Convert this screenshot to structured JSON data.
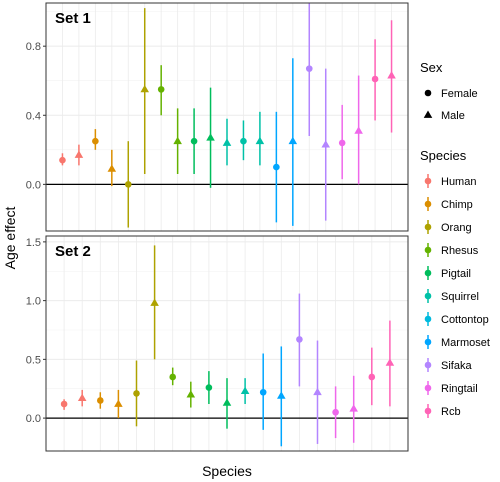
{
  "chart_data": {
    "type": "scatter",
    "xlabel": "Species",
    "ylabel": "Age effect",
    "legend_position": "right",
    "grid": true,
    "legends": {
      "sex": {
        "title": "Sex",
        "items": [
          {
            "label": "Female",
            "shape": "circle"
          },
          {
            "label": "Male",
            "shape": "triangle"
          }
        ]
      },
      "species": {
        "title": "Species",
        "items": [
          {
            "label": "Human",
            "color": "#F8766D"
          },
          {
            "label": "Chimp",
            "color": "#DB8E00"
          },
          {
            "label": "Orang",
            "color": "#AEA200"
          },
          {
            "label": "Rhesus",
            "color": "#64B200"
          },
          {
            "label": "Pigtail",
            "color": "#00BD5C"
          },
          {
            "label": "Squirrel",
            "color": "#00C1A7"
          },
          {
            "label": "Cottontop",
            "color": "#00BADE"
          },
          {
            "label": "Marmoset",
            "color": "#00A6FF"
          },
          {
            "label": "Sifaka",
            "color": "#B385FF"
          },
          {
            "label": "Ringtail",
            "color": "#EF67EB"
          },
          {
            "label": "Rcb",
            "color": "#FF63B6"
          }
        ]
      }
    },
    "panels": [
      {
        "label": "Set 1",
        "ylim": [
          -0.27,
          1.05
        ],
        "yticks": [
          0.0,
          0.4,
          0.8
        ],
        "ytick_labels": [
          "0.0",
          "0.4",
          "0.8"
        ],
        "points": [
          {
            "species": "Human",
            "sex": "Female",
            "y": 0.14,
            "lo": 0.11,
            "hi": 0.18
          },
          {
            "species": "Human",
            "sex": "Male",
            "y": 0.17,
            "lo": 0.11,
            "hi": 0.23
          },
          {
            "species": "Chimp",
            "sex": "Female",
            "y": 0.25,
            "lo": 0.2,
            "hi": 0.32
          },
          {
            "species": "Chimp",
            "sex": "Male",
            "y": 0.09,
            "lo": -0.01,
            "hi": 0.2
          },
          {
            "species": "Orang",
            "sex": "Female",
            "y": 0.0,
            "lo": -0.25,
            "hi": 0.25
          },
          {
            "species": "Orang",
            "sex": "Male",
            "y": 0.55,
            "lo": 0.06,
            "hi": 1.02
          },
          {
            "species": "Rhesus",
            "sex": "Female",
            "y": 0.55,
            "lo": 0.4,
            "hi": 0.69
          },
          {
            "species": "Rhesus",
            "sex": "Male",
            "y": 0.25,
            "lo": 0.06,
            "hi": 0.44
          },
          {
            "species": "Pigtail",
            "sex": "Female",
            "y": 0.25,
            "lo": 0.06,
            "hi": 0.44
          },
          {
            "species": "Pigtail",
            "sex": "Male",
            "y": 0.27,
            "lo": -0.02,
            "hi": 0.56
          },
          {
            "species": "Squirrel",
            "sex": "Male",
            "y": 0.24,
            "lo": 0.11,
            "hi": 0.38
          },
          {
            "species": "Squirrel",
            "sex": "Female",
            "y": 0.25,
            "lo": 0.14,
            "hi": 0.37
          },
          {
            "species": "Squirrel",
            "sex": "Male",
            "y": 0.25,
            "lo": 0.11,
            "hi": 0.42
          },
          {
            "species": "Marmoset",
            "sex": "Female",
            "y": 0.1,
            "lo": -0.22,
            "hi": 0.42
          },
          {
            "species": "Marmoset",
            "sex": "Male",
            "y": 0.25,
            "lo": -0.24,
            "hi": 0.73
          },
          {
            "species": "Sifaka",
            "sex": "Female",
            "y": 0.67,
            "lo": 0.28,
            "hi": 1.05
          },
          {
            "species": "Sifaka",
            "sex": "Male",
            "y": 0.23,
            "lo": -0.21,
            "hi": 0.67
          },
          {
            "species": "Ringtail",
            "sex": "Female",
            "y": 0.24,
            "lo": 0.03,
            "hi": 0.46
          },
          {
            "species": "Ringtail",
            "sex": "Male",
            "y": 0.31,
            "lo": 0.0,
            "hi": 0.63
          },
          {
            "species": "Rcb",
            "sex": "Female",
            "y": 0.61,
            "lo": 0.37,
            "hi": 0.84
          },
          {
            "species": "Rcb",
            "sex": "Male",
            "y": 0.63,
            "lo": 0.3,
            "hi": 0.95
          }
        ]
      },
      {
        "label": "Set 2",
        "ylim": [
          -0.28,
          1.55
        ],
        "yticks": [
          0.0,
          0.5,
          1.0,
          1.5
        ],
        "ytick_labels": [
          "0.0",
          "0.5",
          "1.0",
          "1.5"
        ],
        "points": [
          {
            "species": "Human",
            "sex": "Female",
            "y": 0.12,
            "lo": 0.07,
            "hi": 0.16
          },
          {
            "species": "Human",
            "sex": "Male",
            "y": 0.17,
            "lo": 0.1,
            "hi": 0.24
          },
          {
            "species": "Chimp",
            "sex": "Female",
            "y": 0.15,
            "lo": 0.08,
            "hi": 0.22
          },
          {
            "species": "Chimp",
            "sex": "Male",
            "y": 0.12,
            "lo": 0.0,
            "hi": 0.24
          },
          {
            "species": "Orang",
            "sex": "Female",
            "y": 0.21,
            "lo": -0.07,
            "hi": 0.49
          },
          {
            "species": "Orang",
            "sex": "Male",
            "y": 0.98,
            "lo": 0.5,
            "hi": 1.47
          },
          {
            "species": "Rhesus",
            "sex": "Female",
            "y": 0.35,
            "lo": 0.28,
            "hi": 0.43
          },
          {
            "species": "Rhesus",
            "sex": "Male",
            "y": 0.2,
            "lo": 0.09,
            "hi": 0.31
          },
          {
            "species": "Pigtail",
            "sex": "Female",
            "y": 0.26,
            "lo": 0.12,
            "hi": 0.4
          },
          {
            "species": "Pigtail",
            "sex": "Male",
            "y": 0.13,
            "lo": -0.09,
            "hi": 0.34
          },
          {
            "species": "Squirrel",
            "sex": "Male",
            "y": 0.23,
            "lo": 0.12,
            "hi": 0.34
          },
          {
            "species": "Marmoset",
            "sex": "Female",
            "y": 0.22,
            "lo": -0.1,
            "hi": 0.55
          },
          {
            "species": "Marmoset",
            "sex": "Male",
            "y": 0.19,
            "lo": -0.24,
            "hi": 0.61
          },
          {
            "species": "Sifaka",
            "sex": "Female",
            "y": 0.67,
            "lo": 0.27,
            "hi": 1.06
          },
          {
            "species": "Sifaka",
            "sex": "Male",
            "y": 0.22,
            "lo": -0.22,
            "hi": 0.66
          },
          {
            "species": "Ringtail",
            "sex": "Female",
            "y": 0.05,
            "lo": -0.17,
            "hi": 0.27
          },
          {
            "species": "Ringtail",
            "sex": "Male",
            "y": 0.08,
            "lo": -0.21,
            "hi": 0.36
          },
          {
            "species": "Rcb",
            "sex": "Female",
            "y": 0.35,
            "lo": 0.11,
            "hi": 0.6
          },
          {
            "species": "Rcb",
            "sex": "Male",
            "y": 0.47,
            "lo": 0.1,
            "hi": 0.83
          }
        ]
      }
    ]
  }
}
